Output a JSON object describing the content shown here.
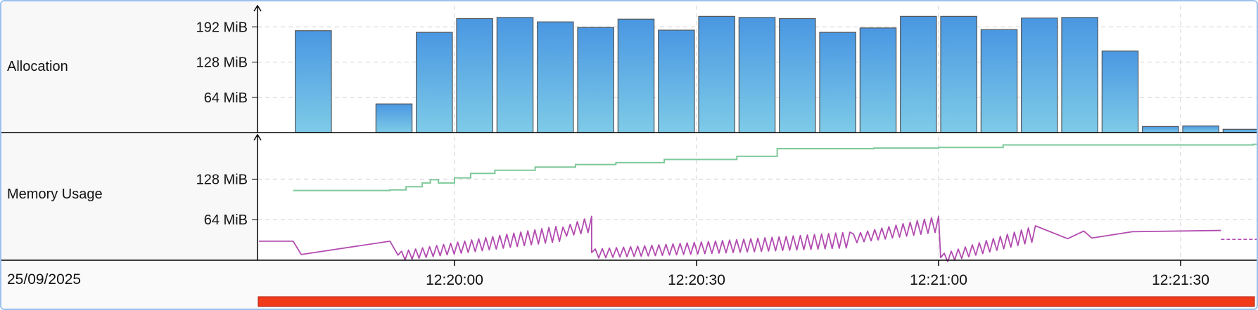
{
  "row_labels": {
    "allocation": "Allocation",
    "memory_usage": "Memory Usage"
  },
  "date": "25/09/2025",
  "colors": {
    "bar_top": "#4a97e2",
    "bar_bottom": "#7ecbe8",
    "bar_border": "#555555",
    "heap_committed": "#7ec99a",
    "heap_used": "#b24bb0",
    "range_bar": "#f03a1a",
    "grid": "#d0d0d0",
    "axis": "#000000"
  },
  "chart_data": [
    {
      "type": "bar",
      "title": "Allocation",
      "ylabel": "",
      "y_ticks": [
        {
          "value": 64,
          "label": "64 MiB"
        },
        {
          "value": 128,
          "label": "128 MiB"
        },
        {
          "value": 192,
          "label": "192 MiB"
        }
      ],
      "ylim": [
        0,
        228
      ],
      "bucket_seconds": 5,
      "x_start": "12:19:40",
      "values": [
        185,
        0,
        52,
        182,
        207,
        209,
        201,
        191,
        206,
        186,
        211,
        209,
        207,
        182,
        190,
        211,
        211,
        187,
        208,
        209,
        148,
        11,
        12,
        6,
        12
      ]
    },
    {
      "type": "line",
      "title": "Memory Usage",
      "ylabel": "",
      "y_ticks": [
        {
          "value": 64,
          "label": "64 MiB"
        },
        {
          "value": 128,
          "label": "128 MiB"
        }
      ],
      "ylim": [
        0,
        196
      ],
      "x_ticks": [
        "12:20:00",
        "12:20:30",
        "12:21:00",
        "12:21:30"
      ],
      "x_range": [
        "12:19:40",
        "12:21:39"
      ],
      "series": [
        {
          "name": "",
          "style": "step",
          "x": [
            "12:19:40",
            "12:19:52",
            "12:19:54",
            "12:19:56",
            "12:19:57",
            "12:19:58",
            "12:20:00",
            "12:20:02",
            "12:20:05",
            "12:20:10",
            "12:20:15",
            "12:20:20",
            "12:20:26",
            "12:20:35",
            "12:20:40",
            "12:20:52",
            "12:21:00",
            "12:21:08",
            "12:21:39"
          ],
          "values": [
            110,
            111,
            116,
            122,
            127,
            122,
            130,
            137,
            142,
            147,
            151,
            154,
            159,
            164,
            176,
            177,
            178,
            182,
            183
          ]
        },
        {
          "name": "",
          "style": "sawtooth",
          "x": [
            "12:19:40",
            "12:19:41",
            "12:19:52",
            "12:19:53",
            "12:20:13",
            "12:20:17",
            "12:20:36",
            "12:20:49",
            "12:21:00",
            "12:21:11",
            "12:21:12",
            "12:21:16",
            "12:21:18",
            "12:21:19",
            "12:21:24",
            "12:21:35",
            "12:21:37",
            "12:21:39"
          ],
          "values": [
            30,
            9,
            30,
            8,
            45,
            60,
            12,
            35,
            60,
            4,
            45,
            34,
            46,
            35,
            45,
            47,
            33,
            33
          ]
        }
      ]
    }
  ]
}
